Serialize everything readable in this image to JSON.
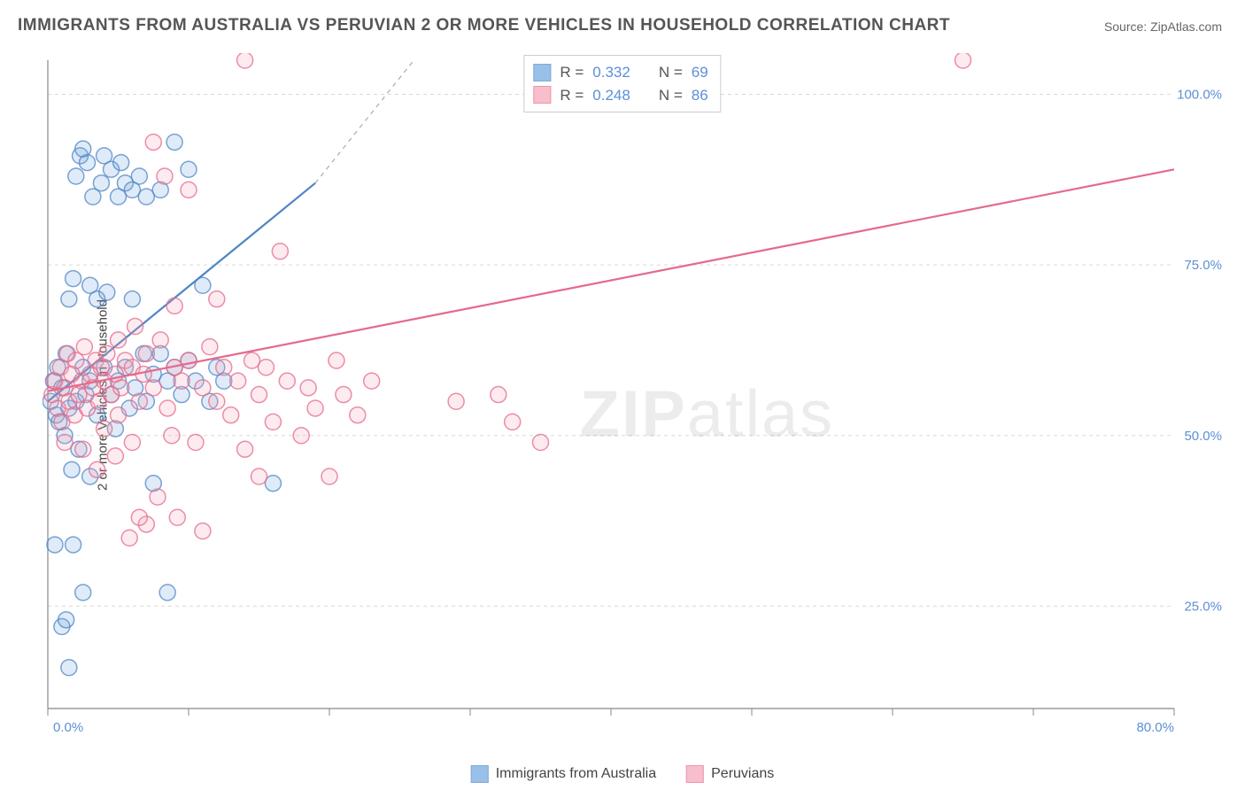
{
  "title": "IMMIGRANTS FROM AUSTRALIA VS PERUVIAN 2 OR MORE VEHICLES IN HOUSEHOLD CORRELATION CHART",
  "source_prefix": "Source: ",
  "source_name": "ZipAtlas.com",
  "y_axis_label": "2 or more Vehicles in Household",
  "watermark_bold": "ZIP",
  "watermark_rest": "atlas",
  "chart": {
    "type": "scatter",
    "xlim": [
      0,
      80
    ],
    "ylim": [
      10,
      105
    ],
    "x_ticks": [
      0,
      10,
      20,
      30,
      40,
      50,
      60,
      70,
      80
    ],
    "x_tick_labels": {
      "0": "0.0%",
      "80": "80.0%"
    },
    "y_ticks": [
      25,
      50,
      75,
      100
    ],
    "y_tick_labels": {
      "25": "25.0%",
      "50": "50.0%",
      "75": "75.0%",
      "100": "100.0%"
    },
    "background_color": "#ffffff",
    "grid_color": "#d9d9d9",
    "axis_color": "#888888",
    "tick_label_color": "#5c8fd6",
    "marker_radius": 9,
    "marker_fill_opacity": 0.22,
    "marker_stroke_opacity": 0.75,
    "marker_stroke_width": 1.5,
    "series": [
      {
        "name": "Immigrants from Australia",
        "color": "#6ea6e0",
        "stroke": "#4f85c4",
        "R": "0.332",
        "N": "69",
        "trend": {
          "x1": 0,
          "y1": 55,
          "x2": 19,
          "y2": 87,
          "dashed_ext": {
            "x2": 26,
            "y2": 105
          }
        },
        "points": [
          [
            0.2,
            55
          ],
          [
            0.4,
            58
          ],
          [
            0.6,
            53
          ],
          [
            0.7,
            60
          ],
          [
            0.8,
            52
          ],
          [
            1.0,
            57
          ],
          [
            1.2,
            50
          ],
          [
            1.3,
            62
          ],
          [
            1.5,
            54
          ],
          [
            1.5,
            70
          ],
          [
            1.7,
            45
          ],
          [
            1.8,
            73
          ],
          [
            2.0,
            55
          ],
          [
            2.0,
            88
          ],
          [
            2.2,
            48
          ],
          [
            2.3,
            91
          ],
          [
            2.5,
            60
          ],
          [
            2.5,
            92
          ],
          [
            2.7,
            56
          ],
          [
            2.8,
            90
          ],
          [
            3.0,
            58
          ],
          [
            3.0,
            72
          ],
          [
            3.0,
            44
          ],
          [
            3.2,
            85
          ],
          [
            3.5,
            53
          ],
          [
            3.5,
            70
          ],
          [
            3.8,
            87
          ],
          [
            4.0,
            60
          ],
          [
            4.0,
            91
          ],
          [
            4.2,
            71
          ],
          [
            4.5,
            56
          ],
          [
            4.5,
            89
          ],
          [
            4.8,
            51
          ],
          [
            5.0,
            85
          ],
          [
            5.0,
            58
          ],
          [
            5.2,
            90
          ],
          [
            5.5,
            60
          ],
          [
            5.5,
            87
          ],
          [
            5.8,
            54
          ],
          [
            6.0,
            86
          ],
          [
            6.0,
            70
          ],
          [
            6.2,
            57
          ],
          [
            6.5,
            88
          ],
          [
            6.8,
            62
          ],
          [
            7.0,
            85
          ],
          [
            7.0,
            55
          ],
          [
            7.5,
            59
          ],
          [
            7.5,
            43
          ],
          [
            8.0,
            86
          ],
          [
            8.0,
            62
          ],
          [
            8.5,
            58
          ],
          [
            8.5,
            27
          ],
          [
            9.0,
            60
          ],
          [
            9.0,
            93
          ],
          [
            9.5,
            56
          ],
          [
            10.0,
            61
          ],
          [
            10.0,
            89
          ],
          [
            10.5,
            58
          ],
          [
            11.0,
            72
          ],
          [
            11.5,
            55
          ],
          [
            12.0,
            60
          ],
          [
            12.5,
            58
          ],
          [
            0.5,
            34
          ],
          [
            1.0,
            22
          ],
          [
            1.3,
            23
          ],
          [
            1.5,
            16
          ],
          [
            1.8,
            34
          ],
          [
            2.5,
            27
          ],
          [
            16.0,
            43
          ]
        ]
      },
      {
        "name": "Peruvians",
        "color": "#f4a3b6",
        "stroke": "#e46a8b",
        "R": "0.248",
        "N": "86",
        "trend": {
          "x1": 0,
          "y1": 56.5,
          "x2": 80,
          "y2": 89
        },
        "points": [
          [
            0.3,
            56
          ],
          [
            0.5,
            58
          ],
          [
            0.7,
            54
          ],
          [
            0.9,
            60
          ],
          [
            1.0,
            52
          ],
          [
            1.2,
            57
          ],
          [
            1.4,
            62
          ],
          [
            1.5,
            55
          ],
          [
            1.7,
            59
          ],
          [
            1.9,
            53
          ],
          [
            2.0,
            61
          ],
          [
            2.2,
            56
          ],
          [
            2.4,
            58
          ],
          [
            2.6,
            63
          ],
          [
            2.8,
            54
          ],
          [
            3.0,
            59
          ],
          [
            3.2,
            57
          ],
          [
            3.4,
            61
          ],
          [
            3.6,
            55
          ],
          [
            3.8,
            60
          ],
          [
            4.0,
            58
          ],
          [
            4.0,
            51
          ],
          [
            4.2,
            62
          ],
          [
            4.5,
            56
          ],
          [
            4.8,
            59
          ],
          [
            5.0,
            53
          ],
          [
            5.0,
            64
          ],
          [
            5.2,
            57
          ],
          [
            5.5,
            61
          ],
          [
            5.8,
            35
          ],
          [
            6.0,
            60
          ],
          [
            6.0,
            49
          ],
          [
            6.2,
            66
          ],
          [
            6.5,
            55
          ],
          [
            6.8,
            59
          ],
          [
            7.0,
            62
          ],
          [
            7.0,
            37
          ],
          [
            7.5,
            57
          ],
          [
            7.5,
            93
          ],
          [
            8.0,
            64
          ],
          [
            8.3,
            88
          ],
          [
            8.5,
            54
          ],
          [
            8.8,
            50
          ],
          [
            9.0,
            60
          ],
          [
            9.0,
            69
          ],
          [
            9.5,
            58
          ],
          [
            10.0,
            61
          ],
          [
            10.0,
            86
          ],
          [
            10.5,
            49
          ],
          [
            11.0,
            57
          ],
          [
            11.5,
            63
          ],
          [
            12.0,
            55
          ],
          [
            12.0,
            70
          ],
          [
            12.5,
            60
          ],
          [
            13.0,
            53
          ],
          [
            13.5,
            58
          ],
          [
            14.0,
            48
          ],
          [
            14.0,
            105
          ],
          [
            14.5,
            61
          ],
          [
            15.0,
            56
          ],
          [
            15.0,
            44
          ],
          [
            15.5,
            60
          ],
          [
            16.0,
            52
          ],
          [
            16.5,
            77
          ],
          [
            17.0,
            58
          ],
          [
            18.0,
            50
          ],
          [
            18.5,
            57
          ],
          [
            19.0,
            54
          ],
          [
            20.0,
            44
          ],
          [
            20.5,
            61
          ],
          [
            21.0,
            56
          ],
          [
            22.0,
            53
          ],
          [
            23.0,
            58
          ],
          [
            29.0,
            55
          ],
          [
            32.0,
            56
          ],
          [
            33.0,
            52
          ],
          [
            35.0,
            49
          ],
          [
            65.0,
            105
          ],
          [
            6.5,
            38
          ],
          [
            7.8,
            41
          ],
          [
            9.2,
            38
          ],
          [
            11.0,
            36
          ],
          [
            2.5,
            48
          ],
          [
            3.5,
            45
          ],
          [
            4.8,
            47
          ],
          [
            1.2,
            49
          ]
        ]
      }
    ]
  },
  "r_legend": {
    "r_label": "R =",
    "n_label": "N ="
  },
  "bottom_legend": {
    "items": [
      "Immigrants from Australia",
      "Peruvians"
    ]
  }
}
